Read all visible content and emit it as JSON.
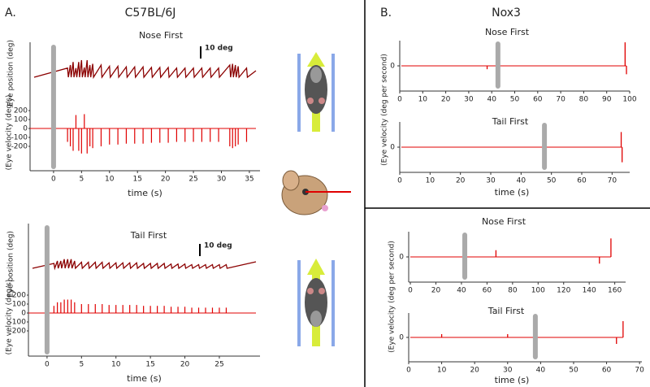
{
  "panel_a": {
    "label": "A.",
    "title": "C57BL/6J",
    "nose_first": {
      "type": "line",
      "title": "Nose First",
      "scale_bar": "10 deg",
      "xlabel": "time (s)",
      "position_label": "Eye position (deg)",
      "velocity_label": "(Eye velocity (deg/s)",
      "xlim": [
        -4.2,
        36.9
      ],
      "xticks": [
        0,
        5,
        10,
        15,
        20,
        25,
        30,
        35
      ],
      "yticks": [
        200,
        100,
        0,
        -100,
        -200
      ],
      "stimulus_x": 0,
      "trace_color": "#e00000",
      "position_color": "#8b0000",
      "saccades": {
        "x": [
          2.5,
          3,
          3.5,
          4,
          4.5,
          5,
          5.5,
          6,
          6.5,
          7,
          8.5,
          10,
          11.5,
          13,
          14.5,
          16,
          17.5,
          19,
          20.5,
          22,
          23.5,
          25,
          26.5,
          28,
          29.5,
          31.5,
          32,
          32.5,
          33,
          34.5
        ],
        "values": [
          -150,
          -200,
          -250,
          150,
          -250,
          -280,
          160,
          -280,
          -200,
          -220,
          -200,
          -180,
          -180,
          -170,
          -170,
          -170,
          -160,
          -160,
          -160,
          -150,
          -150,
          -150,
          -150,
          -150,
          -150,
          -200,
          -220,
          -200,
          -180,
          -150
        ]
      }
    },
    "tail_first": {
      "type": "line",
      "title": "Tail First",
      "scale_bar": "10 deg",
      "xlabel": "time (s)",
      "position_label": "Eye position (deg)",
      "velocity_label": "(Eye velocity (deg/s)",
      "xlim": [
        -2.7,
        30.9
      ],
      "xticks": [
        0,
        5,
        10,
        15,
        20,
        25
      ],
      "yticks": [
        200,
        100,
        0,
        -100,
        -200
      ],
      "stimulus_x": 0,
      "trace_color": "#e00000",
      "position_color": "#8b0000",
      "saccades": {
        "x": [
          1,
          1.5,
          2,
          2.5,
          3,
          3.5,
          4,
          5,
          6,
          7,
          8,
          9,
          10,
          11,
          12,
          13,
          14,
          15,
          16,
          17,
          18,
          19,
          20,
          21,
          22,
          23,
          24,
          25,
          26
        ],
        "values": [
          80,
          120,
          120,
          150,
          150,
          150,
          120,
          100,
          100,
          100,
          100,
          90,
          90,
          90,
          90,
          90,
          80,
          80,
          80,
          80,
          70,
          70,
          70,
          60,
          60,
          60,
          60,
          60,
          60
        ]
      }
    }
  },
  "panel_b": {
    "label": "B.",
    "title": "Nox3",
    "top": {
      "ylabel": "(Eye velocity (deg per second)",
      "xlabel": "time (s)",
      "plots": [
        {
          "type": "line",
          "title": "Nose First",
          "xlim": [
            0,
            100
          ],
          "xticks": [
            0,
            10,
            20,
            30,
            40,
            50,
            60,
            70,
            80,
            90,
            100
          ],
          "ylim": [
            -1.5,
            1.5
          ],
          "yticks": [
            0
          ],
          "stimulus_x": 42.7,
          "trace_color": "#e00000",
          "events": {
            "x": [
              38,
              98,
              98.6
            ],
            "values": [
              -0.2,
              1.4,
              -0.5
            ]
          }
        },
        {
          "type": "line",
          "title": "Tail First",
          "xlim": [
            0,
            75.8
          ],
          "xticks": [
            0,
            10,
            20,
            30,
            40,
            50,
            60,
            70
          ],
          "ylim": [
            -1.5,
            1.5
          ],
          "yticks": [
            0
          ],
          "stimulus_x": 47.7,
          "trace_color": "#e00000",
          "events": {
            "x": [
              73,
              73.3
            ],
            "values": [
              0.9,
              -0.9
            ]
          }
        }
      ]
    },
    "bottom": {
      "ylabel": "(Eye velocity (deg per second)",
      "xlabel": "time (s)",
      "plots": [
        {
          "type": "line",
          "title": "Nose First",
          "xlim": [
            -1.3,
            168.5
          ],
          "xticks": [
            0,
            20,
            40,
            60,
            80,
            100,
            120,
            140,
            160
          ],
          "ylim": [
            -1.5,
            1.5
          ],
          "yticks": [
            0
          ],
          "stimulus_x": 42.6,
          "trace_color": "#e00000",
          "events": {
            "x": [
              67,
              148,
              157
            ],
            "values": [
              0.4,
              -0.4,
              1.1
            ]
          }
        },
        {
          "type": "line",
          "title": "Tail First",
          "xlim": [
            0,
            70.7
          ],
          "xticks": [
            0,
            10,
            20,
            30,
            40,
            50,
            60,
            70
          ],
          "ylim": [
            -1.5,
            1.5
          ],
          "yticks": [
            0
          ],
          "stimulus_x": 38.4,
          "trace_color": "#e00000",
          "events": {
            "x": [
              10,
              30,
              63,
              65
            ],
            "values": [
              0.2,
              0.2,
              -0.4,
              1.0
            ]
          }
        }
      ]
    }
  }
}
